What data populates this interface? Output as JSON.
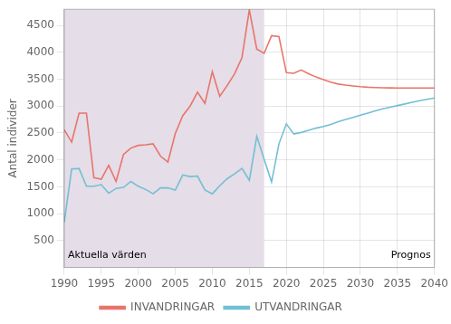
{
  "chart_data": {
    "type": "line",
    "ylabel": "Antal individer",
    "x": [
      1990,
      1991,
      1992,
      1993,
      1994,
      1995,
      1996,
      1997,
      1998,
      1999,
      2000,
      2001,
      2002,
      2003,
      2004,
      2005,
      2006,
      2007,
      2008,
      2009,
      2010,
      2011,
      2012,
      2013,
      2014,
      2015,
      2016,
      2017,
      2018,
      2019,
      2020,
      2021,
      2022,
      2023,
      2024,
      2025,
      2026,
      2027,
      2028,
      2029,
      2030,
      2031,
      2032,
      2033,
      2034,
      2035,
      2036,
      2037,
      2038,
      2039,
      2040
    ],
    "series": [
      {
        "name": "INVANDRINGAR",
        "color": "#e8756a",
        "values": [
          2560,
          2330,
          2870,
          2870,
          1670,
          1640,
          1900,
          1600,
          2100,
          2220,
          2270,
          2280,
          2300,
          2070,
          1960,
          2490,
          2820,
          3000,
          3260,
          3050,
          3640,
          3180,
          3380,
          3600,
          3900,
          4790,
          4060,
          3980,
          4310,
          4290,
          3620,
          3610,
          3670,
          3600,
          3540,
          3490,
          3445,
          3410,
          3390,
          3375,
          3360,
          3350,
          3345,
          3340,
          3338,
          3336,
          3335,
          3335,
          3335,
          3335,
          3335
        ]
      },
      {
        "name": "UTVANDRINGAR",
        "color": "#72bfd4",
        "values": [
          840,
          1830,
          1840,
          1510,
          1510,
          1540,
          1380,
          1470,
          1490,
          1600,
          1510,
          1450,
          1370,
          1480,
          1480,
          1440,
          1720,
          1690,
          1700,
          1440,
          1370,
          1520,
          1650,
          1740,
          1840,
          1620,
          2440,
          2010,
          1590,
          2300,
          2670,
          2480,
          2510,
          2550,
          2590,
          2620,
          2660,
          2710,
          2750,
          2790,
          2830,
          2870,
          2910,
          2950,
          2980,
          3010,
          3040,
          3070,
          3100,
          3125,
          3150
        ]
      }
    ],
    "xlim": [
      1990,
      2040
    ],
    "xticks": [
      1990,
      1995,
      2000,
      2005,
      2010,
      2015,
      2020,
      2025,
      2030,
      2035,
      2040
    ],
    "ylim": [
      0,
      4800
    ],
    "yticks": [
      500,
      1000,
      1500,
      2000,
      2500,
      3000,
      3500,
      4000,
      4500
    ],
    "grid": true,
    "legend": "bottom",
    "regions": [
      {
        "from": 1990,
        "to": 2017,
        "color": "#e5dde8"
      }
    ],
    "annotations": [
      {
        "text": "Aktuella värden",
        "x": 1990.5,
        "y": 95,
        "align": "left"
      },
      {
        "text": "Prognos",
        "x": 2039.5,
        "y": 95,
        "align": "right"
      }
    ]
  }
}
